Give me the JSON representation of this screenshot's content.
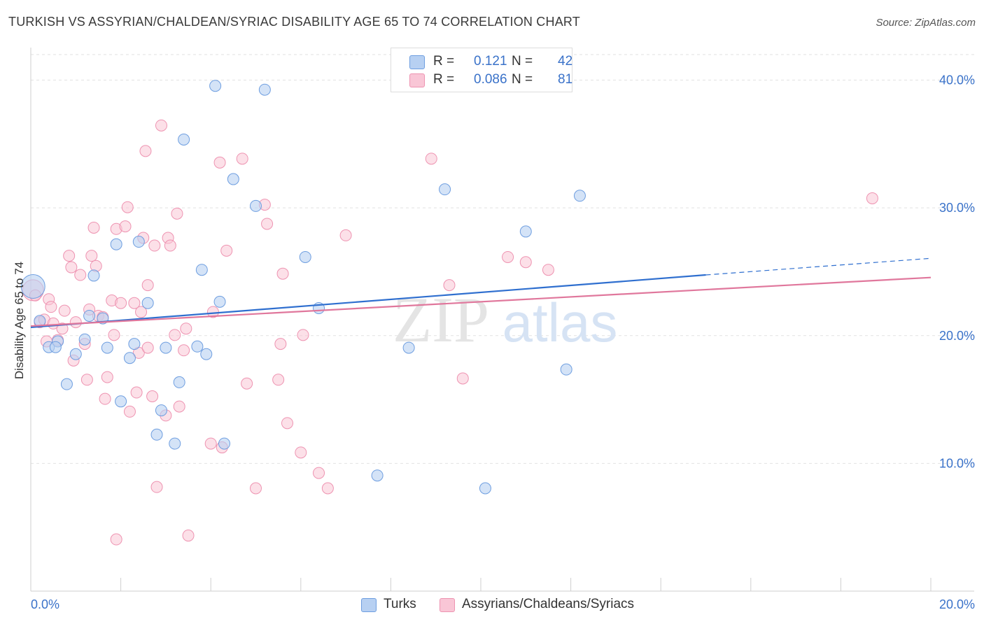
{
  "title": "TURKISH VS ASSYRIAN/CHALDEAN/SYRIAC DISABILITY AGE 65 TO 74 CORRELATION CHART",
  "source": "Source: ZipAtlas.com",
  "watermark": {
    "zip": "ZIP",
    "atlas": "atlas"
  },
  "colors": {
    "turks_fill": "#b7d0f2",
    "turks_stroke": "#6e9ee0",
    "turks_line": "#2f6fcf",
    "assyrians_fill": "#f9c6d6",
    "assyrians_stroke": "#ee93b1",
    "assyrians_line": "#e0779c",
    "axis_label": "#3a72c9",
    "grid": "#e2e2e2"
  },
  "legend": {
    "r_label": "R =",
    "n_label": "N =",
    "rows": [
      {
        "series": "Turks",
        "r": "0.121",
        "n": "42"
      },
      {
        "series": "Assyrians/Chaldeans/Syriacs",
        "r": "0.086",
        "n": "81"
      }
    ]
  },
  "chart_data": {
    "type": "scatter",
    "ylabel": "Disability Age 65 to 74",
    "xlim": [
      0,
      0.2
    ],
    "ylim": [
      0,
      0.42
    ],
    "x_tick_labels": [
      "0.0%",
      "20.0%"
    ],
    "y_ticks": [
      0.1,
      0.2,
      0.3,
      0.4
    ],
    "y_tick_labels": [
      "10.0%",
      "20.0%",
      "30.0%",
      "40.0%"
    ],
    "grid": true,
    "series": [
      {
        "name": "Turks",
        "trend": {
          "x0": 0,
          "y0": 0.2065,
          "x1": 0.15,
          "y1": 0.2475,
          "dash_to_x": 0.2,
          "dash_to_y": 0.2605
        },
        "points": [
          {
            "x": 0.0005,
            "y": 0.2385,
            "big": true
          },
          {
            "x": 0.002,
            "y": 0.2115
          },
          {
            "x": 0.004,
            "y": 0.191
          },
          {
            "x": 0.006,
            "y": 0.1955
          },
          {
            "x": 0.0055,
            "y": 0.191
          },
          {
            "x": 0.008,
            "y": 0.162
          },
          {
            "x": 0.01,
            "y": 0.1855
          },
          {
            "x": 0.012,
            "y": 0.197
          },
          {
            "x": 0.013,
            "y": 0.2155
          },
          {
            "x": 0.014,
            "y": 0.247
          },
          {
            "x": 0.016,
            "y": 0.2135
          },
          {
            "x": 0.017,
            "y": 0.1905
          },
          {
            "x": 0.019,
            "y": 0.2715
          },
          {
            "x": 0.02,
            "y": 0.1485
          },
          {
            "x": 0.022,
            "y": 0.1825
          },
          {
            "x": 0.023,
            "y": 0.1935
          },
          {
            "x": 0.024,
            "y": 0.2735
          },
          {
            "x": 0.026,
            "y": 0.2255
          },
          {
            "x": 0.028,
            "y": 0.1225
          },
          {
            "x": 0.029,
            "y": 0.1415
          },
          {
            "x": 0.03,
            "y": 0.1905
          },
          {
            "x": 0.032,
            "y": 0.1155
          },
          {
            "x": 0.033,
            "y": 0.1635
          },
          {
            "x": 0.034,
            "y": 0.3535
          },
          {
            "x": 0.037,
            "y": 0.1915
          },
          {
            "x": 0.038,
            "y": 0.2515
          },
          {
            "x": 0.039,
            "y": 0.1855
          },
          {
            "x": 0.041,
            "y": 0.3955
          },
          {
            "x": 0.042,
            "y": 0.2265
          },
          {
            "x": 0.043,
            "y": 0.1155
          },
          {
            "x": 0.045,
            "y": 0.3225
          },
          {
            "x": 0.05,
            "y": 0.3015
          },
          {
            "x": 0.052,
            "y": 0.3925
          },
          {
            "x": 0.061,
            "y": 0.2615
          },
          {
            "x": 0.064,
            "y": 0.2215
          },
          {
            "x": 0.077,
            "y": 0.0905
          },
          {
            "x": 0.084,
            "y": 0.1905
          },
          {
            "x": 0.092,
            "y": 0.3145
          },
          {
            "x": 0.101,
            "y": 0.0805
          },
          {
            "x": 0.11,
            "y": 0.2815
          },
          {
            "x": 0.119,
            "y": 0.1735
          },
          {
            "x": 0.122,
            "y": 0.3095
          }
        ]
      },
      {
        "name": "Assyrians/Chaldeans/Syriacs",
        "trend": {
          "x0": 0,
          "y0": 0.2075,
          "x1": 0.2,
          "y1": 0.2455
        },
        "points": [
          {
            "x": 0.0005,
            "y": 0.2355,
            "big": true
          },
          {
            "x": 0.001,
            "y": 0.2315
          },
          {
            "x": 0.002,
            "y": 0.2105
          },
          {
            "x": 0.003,
            "y": 0.2125
          },
          {
            "x": 0.0035,
            "y": 0.1955
          },
          {
            "x": 0.004,
            "y": 0.2285
          },
          {
            "x": 0.0045,
            "y": 0.2225
          },
          {
            "x": 0.005,
            "y": 0.2095
          },
          {
            "x": 0.006,
            "y": 0.1965
          },
          {
            "x": 0.007,
            "y": 0.2055
          },
          {
            "x": 0.0075,
            "y": 0.2195
          },
          {
            "x": 0.0085,
            "y": 0.2625
          },
          {
            "x": 0.009,
            "y": 0.2535
          },
          {
            "x": 0.0095,
            "y": 0.1805
          },
          {
            "x": 0.01,
            "y": 0.2105
          },
          {
            "x": 0.011,
            "y": 0.2475
          },
          {
            "x": 0.012,
            "y": 0.1935
          },
          {
            "x": 0.0125,
            "y": 0.1655
          },
          {
            "x": 0.013,
            "y": 0.2205
          },
          {
            "x": 0.0135,
            "y": 0.2625
          },
          {
            "x": 0.014,
            "y": 0.2845
          },
          {
            "x": 0.0145,
            "y": 0.2545
          },
          {
            "x": 0.015,
            "y": 0.2155
          },
          {
            "x": 0.016,
            "y": 0.2145
          },
          {
            "x": 0.0165,
            "y": 0.1505
          },
          {
            "x": 0.017,
            "y": 0.1675
          },
          {
            "x": 0.018,
            "y": 0.2275
          },
          {
            "x": 0.0185,
            "y": 0.2005
          },
          {
            "x": 0.019,
            "y": 0.2835
          },
          {
            "x": 0.019,
            "y": 0.0405
          },
          {
            "x": 0.02,
            "y": 0.2255
          },
          {
            "x": 0.021,
            "y": 0.2855
          },
          {
            "x": 0.0215,
            "y": 0.3005
          },
          {
            "x": 0.022,
            "y": 0.1405
          },
          {
            "x": 0.023,
            "y": 0.2255
          },
          {
            "x": 0.0235,
            "y": 0.1555
          },
          {
            "x": 0.024,
            "y": 0.1865
          },
          {
            "x": 0.0245,
            "y": 0.2185
          },
          {
            "x": 0.025,
            "y": 0.2765
          },
          {
            "x": 0.0255,
            "y": 0.3445
          },
          {
            "x": 0.026,
            "y": 0.2395
          },
          {
            "x": 0.026,
            "y": 0.1905
          },
          {
            "x": 0.027,
            "y": 0.1525
          },
          {
            "x": 0.0275,
            "y": 0.2705
          },
          {
            "x": 0.028,
            "y": 0.0815
          },
          {
            "x": 0.029,
            "y": 0.3645
          },
          {
            "x": 0.03,
            "y": 0.1375
          },
          {
            "x": 0.0305,
            "y": 0.2765
          },
          {
            "x": 0.031,
            "y": 0.2705
          },
          {
            "x": 0.032,
            "y": 0.2005
          },
          {
            "x": 0.0325,
            "y": 0.2955
          },
          {
            "x": 0.033,
            "y": 0.1445
          },
          {
            "x": 0.034,
            "y": 0.1885
          },
          {
            "x": 0.0345,
            "y": 0.2055
          },
          {
            "x": 0.035,
            "y": 0.0435
          },
          {
            "x": 0.04,
            "y": 0.1155
          },
          {
            "x": 0.0405,
            "y": 0.2185
          },
          {
            "x": 0.042,
            "y": 0.3355
          },
          {
            "x": 0.0425,
            "y": 0.1125
          },
          {
            "x": 0.0435,
            "y": 0.2665
          },
          {
            "x": 0.047,
            "y": 0.3385
          },
          {
            "x": 0.048,
            "y": 0.1625
          },
          {
            "x": 0.05,
            "y": 0.0805
          },
          {
            "x": 0.052,
            "y": 0.3025
          },
          {
            "x": 0.0525,
            "y": 0.2875
          },
          {
            "x": 0.055,
            "y": 0.1655
          },
          {
            "x": 0.0555,
            "y": 0.1935
          },
          {
            "x": 0.056,
            "y": 0.2485
          },
          {
            "x": 0.057,
            "y": 0.1315
          },
          {
            "x": 0.06,
            "y": 0.1085
          },
          {
            "x": 0.0605,
            "y": 0.2005
          },
          {
            "x": 0.064,
            "y": 0.0925
          },
          {
            "x": 0.066,
            "y": 0.0805
          },
          {
            "x": 0.07,
            "y": 0.2785
          },
          {
            "x": 0.089,
            "y": 0.3385
          },
          {
            "x": 0.093,
            "y": 0.2395
          },
          {
            "x": 0.096,
            "y": 0.1665
          },
          {
            "x": 0.106,
            "y": 0.2615
          },
          {
            "x": 0.11,
            "y": 0.2575
          },
          {
            "x": 0.115,
            "y": 0.2515
          },
          {
            "x": 0.187,
            "y": 0.3075
          }
        ]
      }
    ]
  }
}
